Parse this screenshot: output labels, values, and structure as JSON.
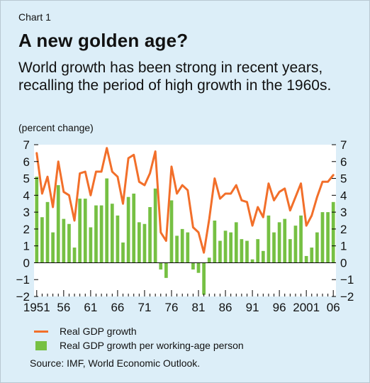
{
  "header": {
    "chart_number": "Chart 1",
    "title": "A new golden age?",
    "subtitle": "World growth has been strong in recent years, recalling the period of high growth in the 1960s.",
    "unit": "(percent change)"
  },
  "legend": {
    "line_label": "Real GDP growth",
    "bar_label": "Real GDP growth per working-age person"
  },
  "source": "Source: IMF, World Economic Outlook.",
  "chart_data": {
    "type": "bar+line",
    "x": [
      1951,
      1952,
      1953,
      1954,
      1955,
      1956,
      1957,
      1958,
      1959,
      1960,
      1961,
      1962,
      1963,
      1964,
      1965,
      1966,
      1967,
      1968,
      1969,
      1970,
      1971,
      1972,
      1973,
      1974,
      1975,
      1976,
      1977,
      1978,
      1979,
      1980,
      1981,
      1982,
      1983,
      1984,
      1985,
      1986,
      1987,
      1988,
      1989,
      1990,
      1991,
      1992,
      1993,
      1994,
      1995,
      1996,
      1997,
      1998,
      1999,
      2000,
      2001,
      2002,
      2003,
      2004,
      2005,
      2006
    ],
    "x_tick_labels": [
      "1951",
      "56",
      "61",
      "66",
      "71",
      "76",
      "81",
      "86",
      "91",
      "96",
      "2001",
      "06"
    ],
    "x_tick_years": [
      1951,
      1956,
      1961,
      1966,
      1971,
      1976,
      1981,
      1986,
      1991,
      1996,
      2001,
      2006
    ],
    "series": [
      {
        "name": "Real GDP growth",
        "kind": "line",
        "color": "#f26f2a",
        "values": [
          6.5,
          4.1,
          5.1,
          3.3,
          6.0,
          4.2,
          4.0,
          2.5,
          5.3,
          5.4,
          4.0,
          5.4,
          5.4,
          6.8,
          5.4,
          5.1,
          3.5,
          6.2,
          6.4,
          4.8,
          4.6,
          5.3,
          6.6,
          1.8,
          1.3,
          5.7,
          4.1,
          4.6,
          4.3,
          2.1,
          1.8,
          0.6,
          2.6,
          5.0,
          3.8,
          4.1,
          4.1,
          4.6,
          3.7,
          3.6,
          2.2,
          3.3,
          2.7,
          4.7,
          3.7,
          4.2,
          4.4,
          3.1,
          3.9,
          4.7,
          2.2,
          2.8,
          3.9,
          4.8,
          4.8,
          5.2
        ]
      },
      {
        "name": "Real GDP growth per working-age person",
        "kind": "bar",
        "color": "#76c043",
        "values": [
          5.1,
          2.7,
          3.6,
          1.8,
          4.6,
          2.6,
          2.3,
          0.9,
          3.8,
          3.8,
          2.1,
          3.4,
          3.4,
          5.0,
          3.5,
          2.8,
          1.2,
          3.9,
          4.1,
          2.4,
          2.3,
          3.3,
          4.4,
          -0.4,
          -0.9,
          3.7,
          1.6,
          2.0,
          1.8,
          -0.4,
          -0.6,
          -1.9,
          0.3,
          2.5,
          1.3,
          1.9,
          1.8,
          2.4,
          1.4,
          1.3,
          0.2,
          1.4,
          0.7,
          2.8,
          1.8,
          2.4,
          2.6,
          1.4,
          2.2,
          2.8,
          0.4,
          0.9,
          1.8,
          3.0,
          3.0,
          3.6
        ]
      }
    ],
    "ylim": [
      -2,
      7
    ],
    "y_ticks": [
      -2,
      -1,
      0,
      1,
      2,
      3,
      4,
      5,
      6,
      7
    ],
    "grid": false
  }
}
